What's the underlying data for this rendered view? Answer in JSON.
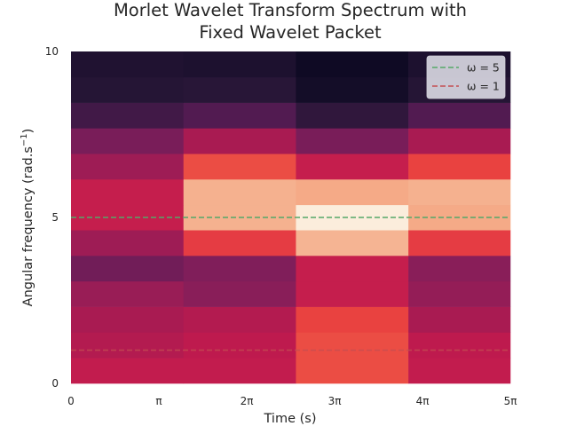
{
  "chart_data": {
    "type": "heatmap",
    "title_lines": [
      "Morlet Wavelet Transform Spectrum with",
      "Fixed Wavelet Packet"
    ],
    "xlabel": "Time (s)",
    "ylabel": "Angular frequency (rad.s$^{-1}$)",
    "ylabel_display": {
      "main": "Angular frequency (rad.s",
      "sup": "−1",
      "close": ")"
    },
    "xlim": [
      0,
      5
    ],
    "x_unit": "pi",
    "ylim": [
      0,
      10
    ],
    "x_ticks": [
      0,
      1,
      2,
      3,
      4,
      5
    ],
    "x_tick_labels": [
      "0",
      "π",
      "2π",
      "3π",
      "4π",
      "5π"
    ],
    "y_ticks": [
      0,
      5,
      10
    ],
    "y_tick_labels": [
      "0",
      "5",
      "10"
    ],
    "colormap": "rocket",
    "intensity_range": [
      0,
      1
    ],
    "column_x_edges": [
      0,
      1.28,
      2.56,
      3.84,
      5.12
    ],
    "row_y_edges": [
      0,
      0.77,
      1.54,
      2.31,
      3.08,
      3.85,
      4.62,
      5.38,
      6.15,
      6.92,
      7.69,
      8.46,
      9.23,
      10
    ],
    "intensity": [
      [
        0.45,
        0.45,
        0.62,
        0.45
      ],
      [
        0.42,
        0.44,
        0.62,
        0.44
      ],
      [
        0.4,
        0.42,
        0.6,
        0.4
      ],
      [
        0.37,
        0.34,
        0.46,
        0.36
      ],
      [
        0.28,
        0.32,
        0.46,
        0.34
      ],
      [
        0.38,
        0.58,
        0.83,
        0.58
      ],
      [
        0.46,
        0.82,
        0.99,
        0.8
      ],
      [
        0.46,
        0.82,
        0.8,
        0.82
      ],
      [
        0.38,
        0.62,
        0.46,
        0.6
      ],
      [
        0.3,
        0.4,
        0.3,
        0.4
      ],
      [
        0.16,
        0.2,
        0.12,
        0.2
      ],
      [
        0.09,
        0.1,
        0.03,
        0.09
      ],
      [
        0.07,
        0.06,
        0.01,
        0.06
      ]
    ],
    "hlines": [
      {
        "name": "ω = 5",
        "y": 5,
        "color": "#55a868",
        "dash": "dashed"
      },
      {
        "name": "ω = 1",
        "y": 1,
        "color": "#c44e52",
        "dash": "dashed"
      }
    ],
    "hline_x_range": [
      0,
      5
    ],
    "legend_placement": "top-right",
    "grid": false
  }
}
